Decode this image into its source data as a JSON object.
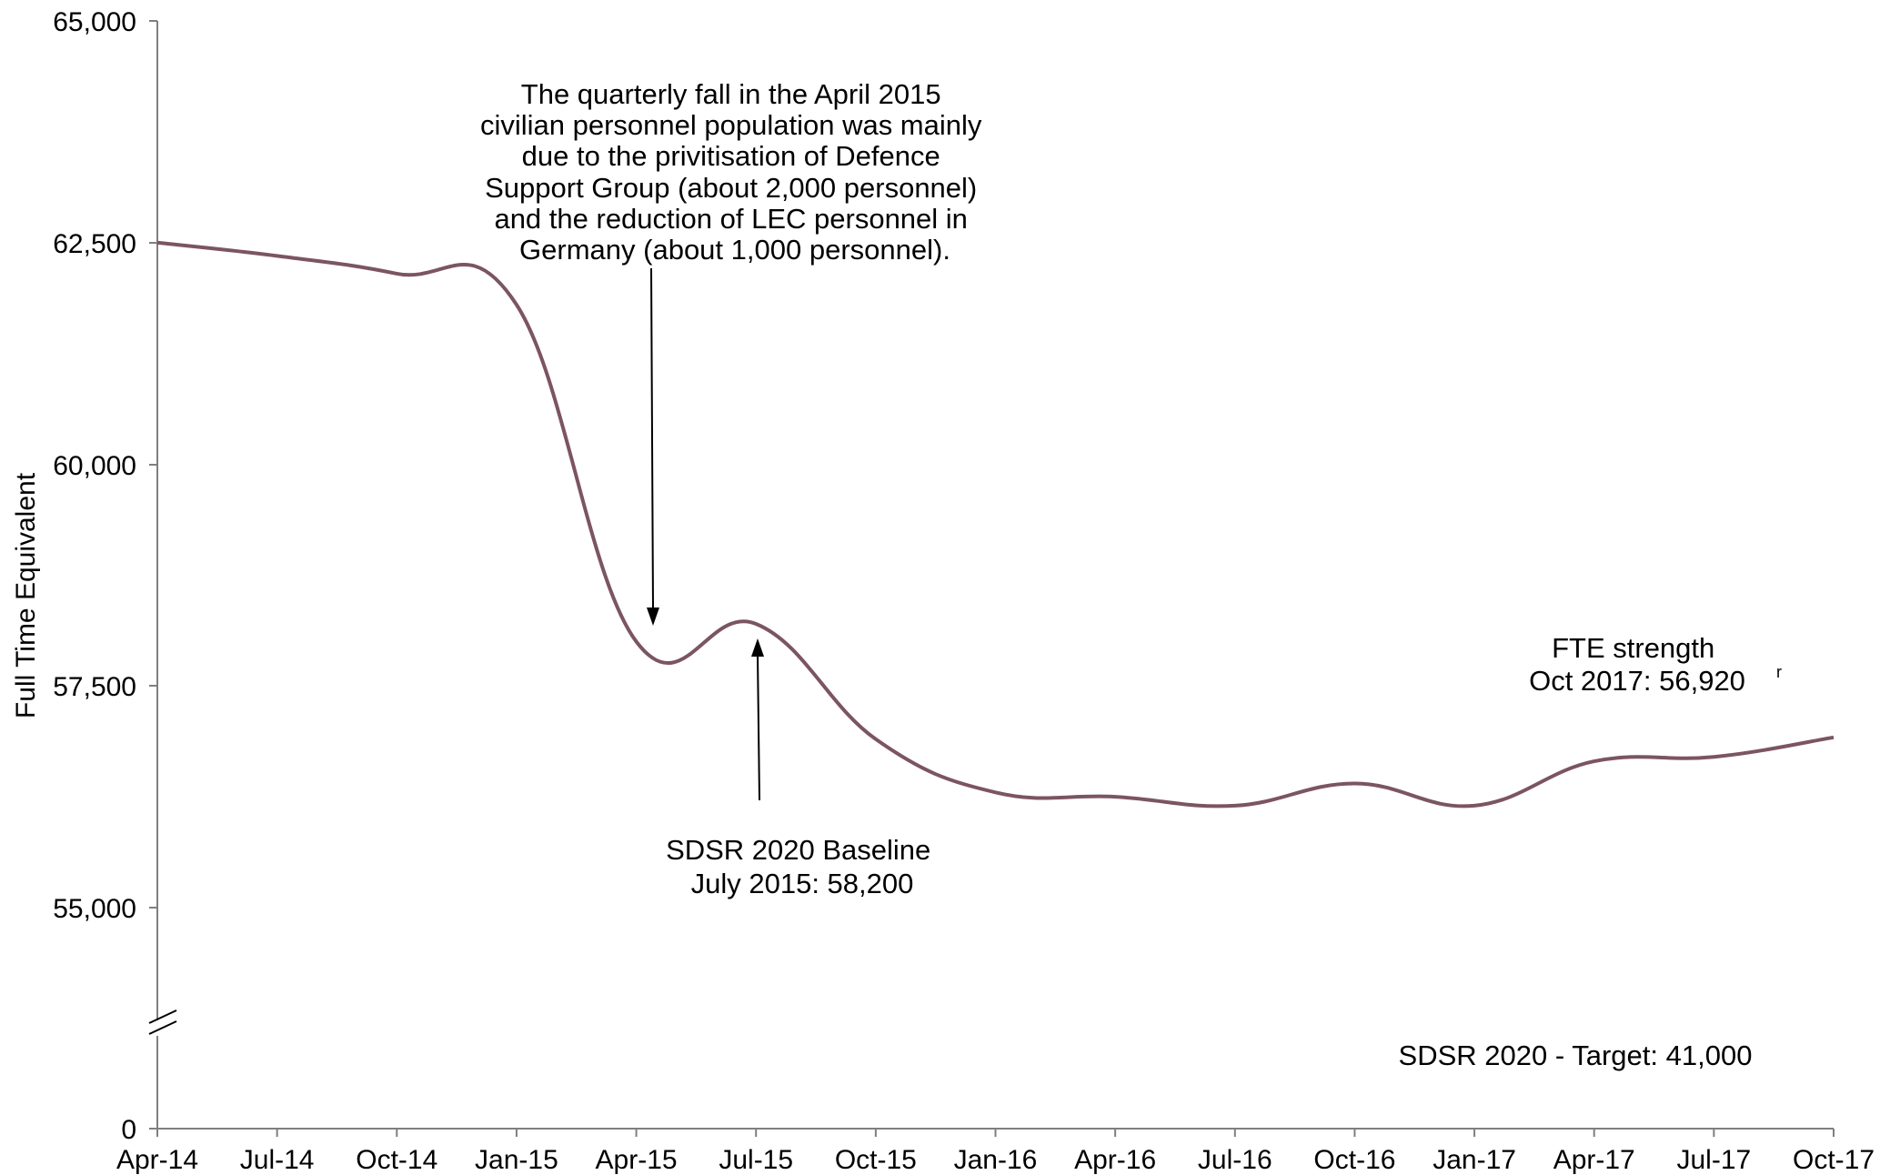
{
  "chart_data": {
    "type": "line",
    "ylabel": "Full Time Equivalent",
    "xlabel": "",
    "categories": [
      "Apr-14",
      "Jul-14",
      "Oct-14",
      "Jan-15",
      "Apr-15",
      "Jul-15",
      "Oct-15",
      "Jan-16",
      "Apr-16",
      "Jul-16",
      "Oct-16",
      "Jan-17",
      "Apr-17",
      "Jul-17",
      "Oct-17"
    ],
    "series": [
      {
        "values": [
          62500,
          62350,
          62150,
          61800,
          58000,
          58200,
          56900,
          56300,
          56250,
          56150,
          56400,
          56150,
          56650,
          56700,
          56920
        ],
        "color": "#7b5560"
      }
    ],
    "yticks": [
      "0",
      "55,000",
      "57,500",
      "60,000",
      "62,500",
      "65,000"
    ],
    "ytick_values": [
      0,
      55000,
      57500,
      60000,
      62500,
      65000
    ],
    "yaxis_break": {
      "below": 55000,
      "lower_value": 0,
      "broken": true
    },
    "ylim": [
      0,
      65000
    ],
    "grid": false,
    "legend": "none",
    "annotations": {
      "fall_note": {
        "lines": [
          "The quarterly fall in the April 2015",
          "civilian personnel population was mainly",
          "due to the privitisation of Defence",
          "Support Group (about 2,000 personnel)",
          "and the reduction of LEC personnel in",
          "Germany (about 1,000 personnel)."
        ],
        "points_to_category": "Apr-15",
        "points_to_value": 58100
      },
      "baseline_note": {
        "lines": [
          "SDSR 2020 Baseline",
          "July 2015:  58,200"
        ],
        "points_to_category": "Jul-15",
        "points_to_value": 58200
      },
      "fte_note": {
        "lines": [
          "FTE strength",
          "Oct 2017:  56,920"
        ],
        "superscript": "r"
      },
      "target_note": {
        "text": "SDSR 2020 - Target: 41,000"
      }
    }
  }
}
